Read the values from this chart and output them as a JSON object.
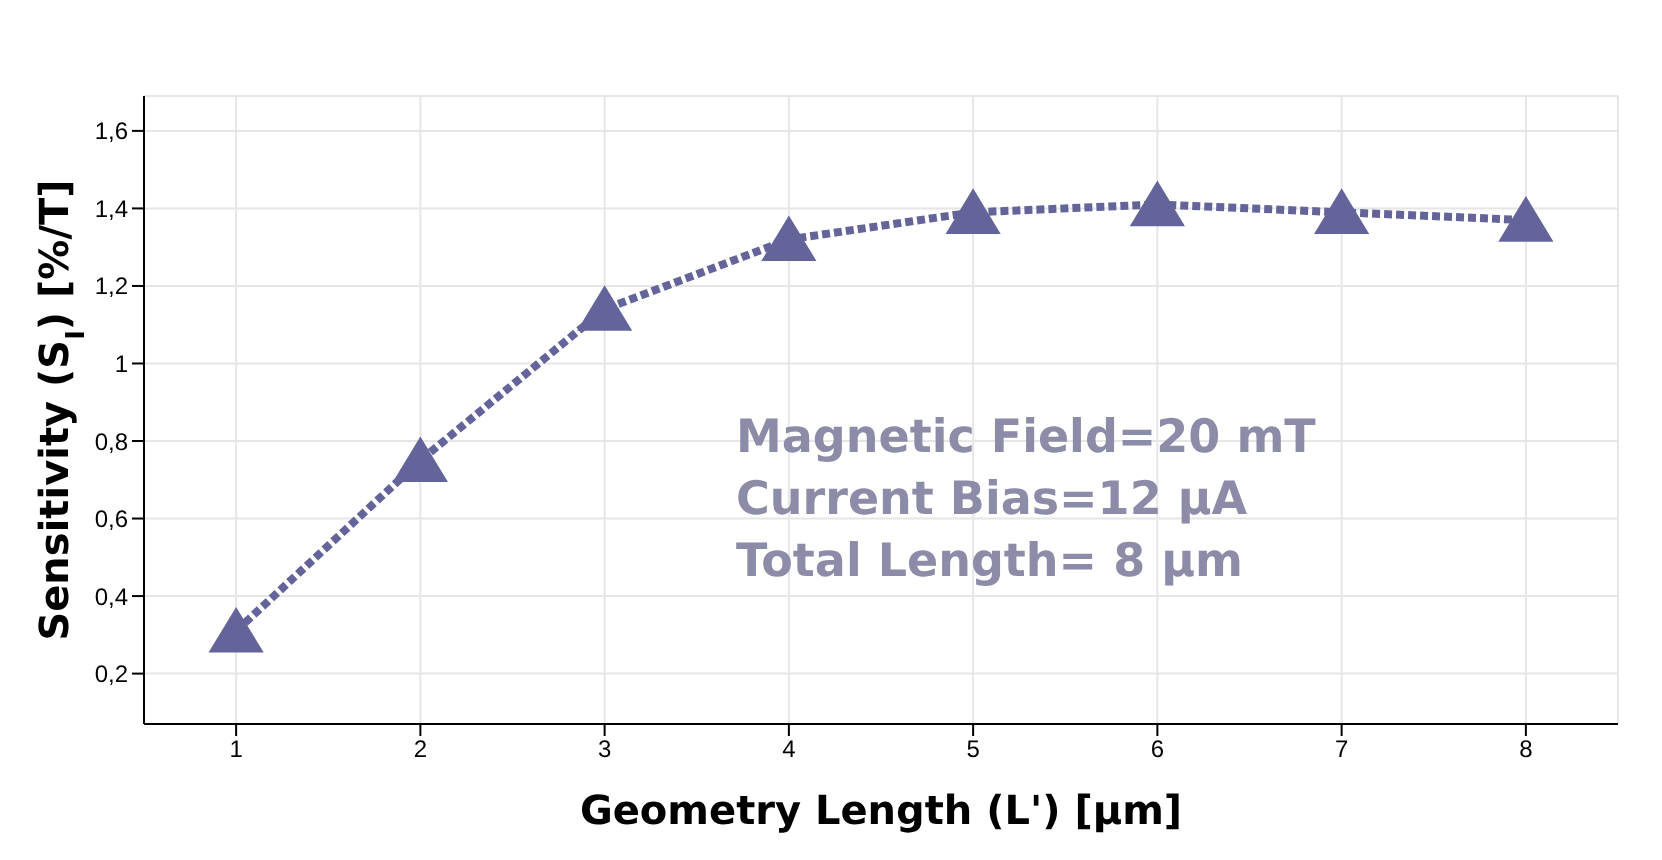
{
  "chart_data": {
    "type": "line",
    "xlabel": "Geometry Length (L') [µm]",
    "ylabel": "Sensitivity (S$_{I}$) [%/T]",
    "x": [
      1,
      2,
      3,
      4,
      5,
      6,
      7,
      8
    ],
    "series": [
      {
        "color": "#64649a",
        "values": [
          0.31,
          0.75,
          1.14,
          1.32,
          1.39,
          1.41,
          1.39,
          1.37
        ]
      }
    ],
    "xlim": [
      0.5,
      8.5
    ],
    "xticks": [
      1,
      2,
      3,
      4,
      5,
      6,
      7,
      8
    ],
    "ylim": [
      0.07,
      1.69
    ],
    "yticks": [
      {
        "value": 0.2,
        "label": "0,2"
      },
      {
        "value": 0.4,
        "label": "0,4"
      },
      {
        "value": 0.6,
        "label": "0,6"
      },
      {
        "value": 0.8,
        "label": "0,8"
      },
      {
        "value": 1,
        "label": "1"
      },
      {
        "value": 1.2,
        "label": "1,2"
      },
      {
        "value": 1.4,
        "label": "1,4"
      },
      {
        "value": 1.6,
        "label": "1,6"
      }
    ],
    "grid": true,
    "marker": "triangle",
    "line_style": "dashed",
    "annotations": [
      "Magnetic Field=20 mT",
      "Current Bias=12 µA",
      "Total Length= 8 µm"
    ]
  }
}
